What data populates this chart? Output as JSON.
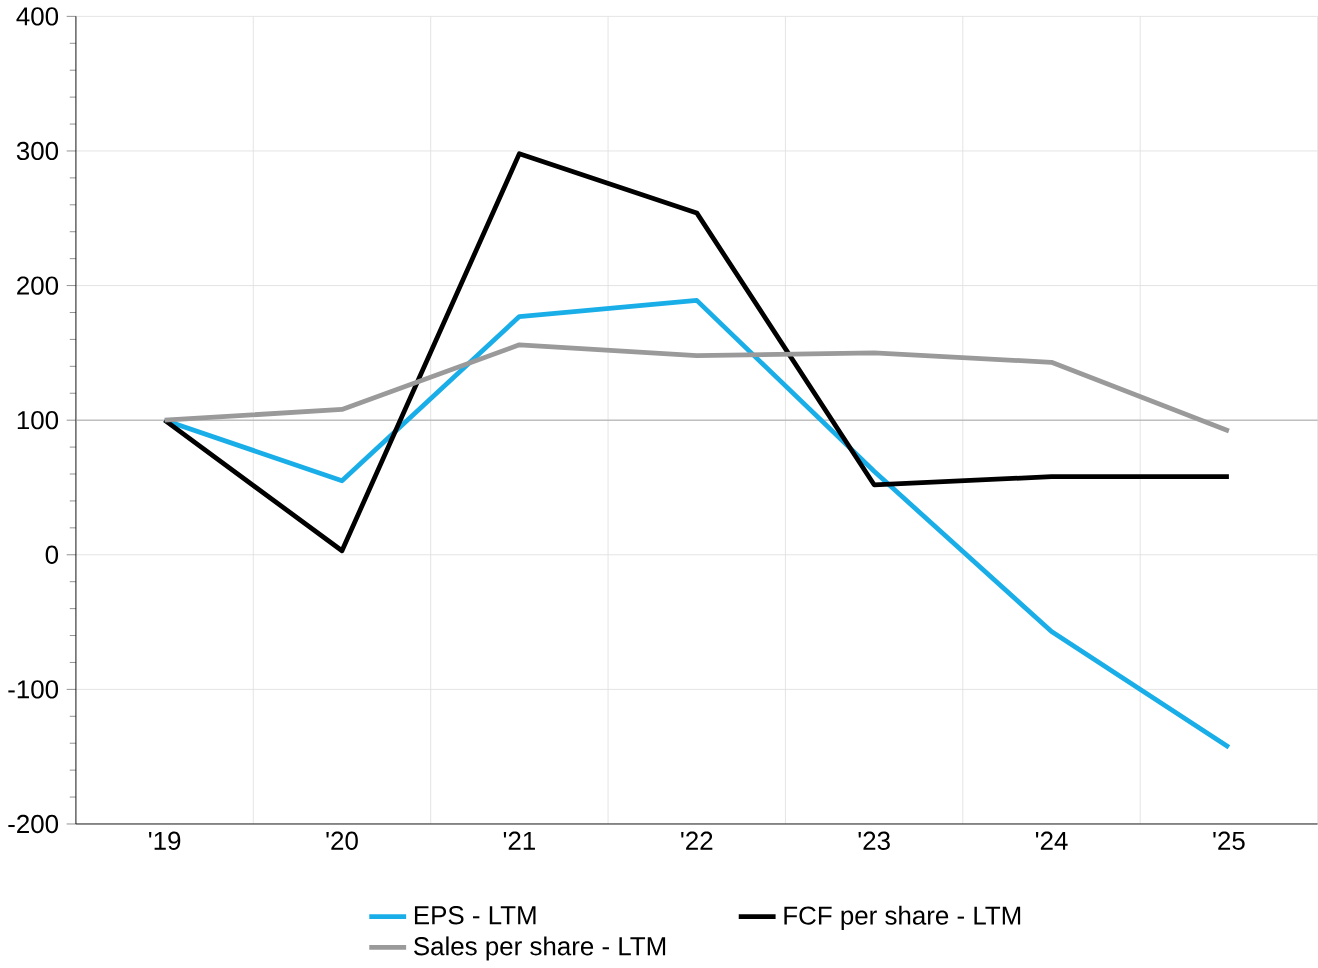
{
  "chart_data": {
    "type": "line",
    "categories": [
      "'19",
      "'20",
      "'21",
      "'22",
      "'23",
      "'24",
      "'25"
    ],
    "series": [
      {
        "name": "EPS - LTM",
        "color": "#1aaee8",
        "values": [
          100,
          55,
          177,
          189,
          62,
          -57,
          -143
        ]
      },
      {
        "name": "FCF per share - LTM",
        "color": "#000000",
        "values": [
          100,
          3,
          298,
          254,
          52,
          58,
          58
        ]
      },
      {
        "name": "Sales per share - LTM",
        "color": "#9a9a9a",
        "values": [
          100,
          108,
          156,
          148,
          150,
          143,
          92
        ]
      }
    ],
    "ylim": [
      -200,
      400
    ],
    "yticks": [
      -200,
      -100,
      0,
      100,
      200,
      300,
      400
    ],
    "grid": true,
    "legend": "bottom",
    "marker": "none",
    "line_style": "solid",
    "ref_lines": [
      {
        "axis": "y",
        "value": 100,
        "color": "#a0a0a0"
      }
    ]
  }
}
